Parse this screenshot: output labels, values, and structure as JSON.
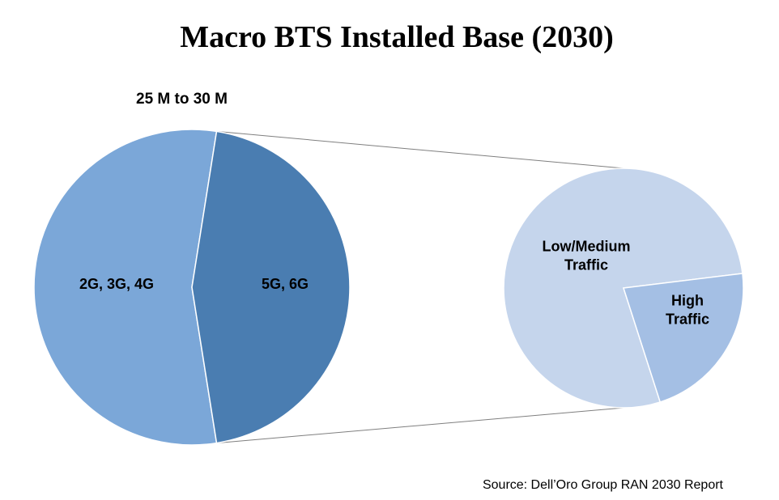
{
  "chart_data": [
    {
      "type": "pie",
      "title": "Macro BTS Installed Base (2030)",
      "subtitle": "25 M to 30 M",
      "categories": [
        "2G, 3G, 4G",
        "5G, 6G"
      ],
      "values": [
        55,
        45
      ],
      "colors": [
        "#7BA7D8",
        "#4A7DB1"
      ]
    },
    {
      "type": "pie",
      "categories": [
        "Low/Medium Traffic",
        "High Traffic"
      ],
      "label_lines": [
        [
          "Low/Medium",
          "Traffic"
        ],
        [
          "High",
          "Traffic"
        ]
      ],
      "values": [
        78,
        22
      ],
      "colors": [
        "#C5D5EC",
        "#A4BFE4"
      ]
    }
  ],
  "source": "Source: Dell’Oro Group RAN 2030 Report",
  "connector_color": "#7f7f7f",
  "slice_border_color": "#ffffff"
}
